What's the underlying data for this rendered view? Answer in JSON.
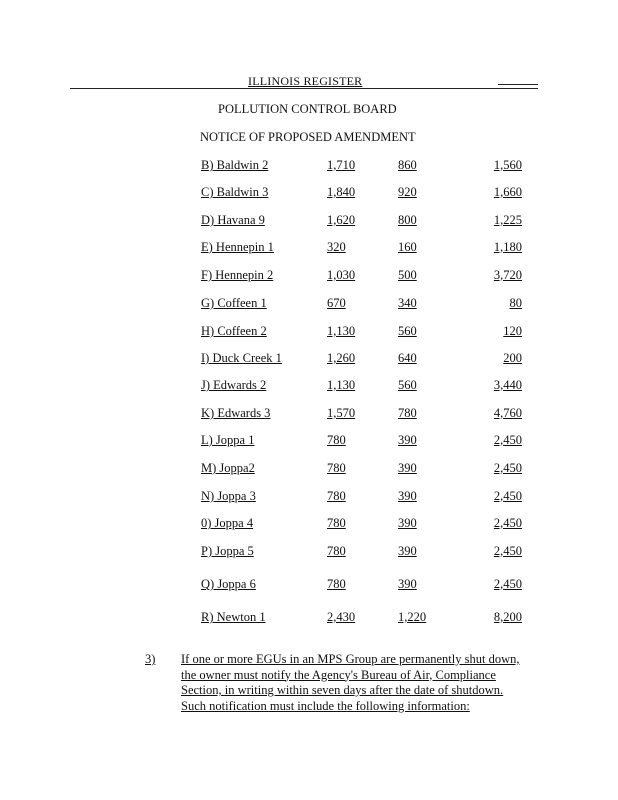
{
  "header": {
    "register": "ILLINOIS REGISTER",
    "agency": "POLLUTION CONTROL BOARD",
    "notice": "NOTICE OF PROPOSED AMENDMENT"
  },
  "table": {
    "rows": [
      [
        "B) Baldwin 2",
        "1,710",
        "860",
        "1,560"
      ],
      [
        "C) Baldwin 3",
        "1,840",
        "920",
        "1,660"
      ],
      [
        "D) Havana 9",
        "1,620",
        "800",
        "1,225"
      ],
      [
        "E) Hennepin 1",
        "320",
        "160",
        "1,180"
      ],
      [
        "F) Hennepin 2",
        "1,030",
        "500",
        "3,720"
      ],
      [
        "G) Coffeen 1",
        "670",
        "340",
        "80"
      ],
      [
        "H) Coffeen 2",
        "1,130",
        "560",
        "120"
      ],
      [
        "I) Duck Creek 1",
        "1,260",
        "640",
        "200"
      ],
      [
        "J) Edwards 2",
        "1,130",
        "560",
        "3,440"
      ],
      [
        "K) Edwards 3",
        "1,570",
        "780",
        "4,760"
      ],
      [
        "L) Joppa 1",
        "780",
        "390",
        "2,450"
      ],
      [
        "M) Joppa2",
        "780",
        "390",
        "2,450"
      ],
      [
        "N) Joppa 3",
        "780",
        "390",
        "2,450"
      ],
      [
        "0) Joppa 4",
        "780",
        "390",
        "2,450"
      ],
      [
        "P) Joppa 5",
        "780",
        "390",
        "2,450"
      ],
      [
        "Q) Joppa 6",
        "780",
        "390",
        "2,450"
      ],
      [
        "R) Newton 1",
        "2,430",
        "1,220",
        "8,200"
      ]
    ]
  },
  "paragraph": {
    "number": "3)",
    "text": "If one or more EGUs in an MPS Group are permanently shut down, the owner must notify the Agency's Bureau of Air, Compliance Section, in writing within seven days after the date of shutdown.  Such notification must include the following information:"
  }
}
